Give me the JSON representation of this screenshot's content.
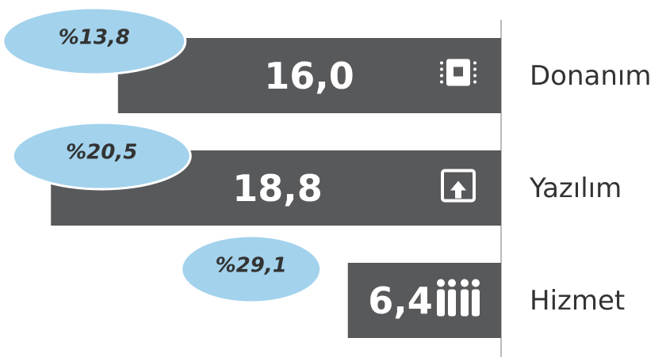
{
  "chart_data": {
    "type": "bar",
    "orientation": "horizontal",
    "categories": [
      "Donanım",
      "Yazılım",
      "Hizmet"
    ],
    "values": [
      16.0,
      18.8,
      6.4
    ],
    "value_labels": [
      "16,0",
      "18,8",
      "6,4"
    ],
    "color": "#58595b",
    "growth": {
      "values": [
        13.8,
        20.5,
        29.1
      ],
      "value_labels": [
        "%13,8",
        "%20,5",
        "%29,1"
      ],
      "color": "#a3d2ec"
    }
  }
}
